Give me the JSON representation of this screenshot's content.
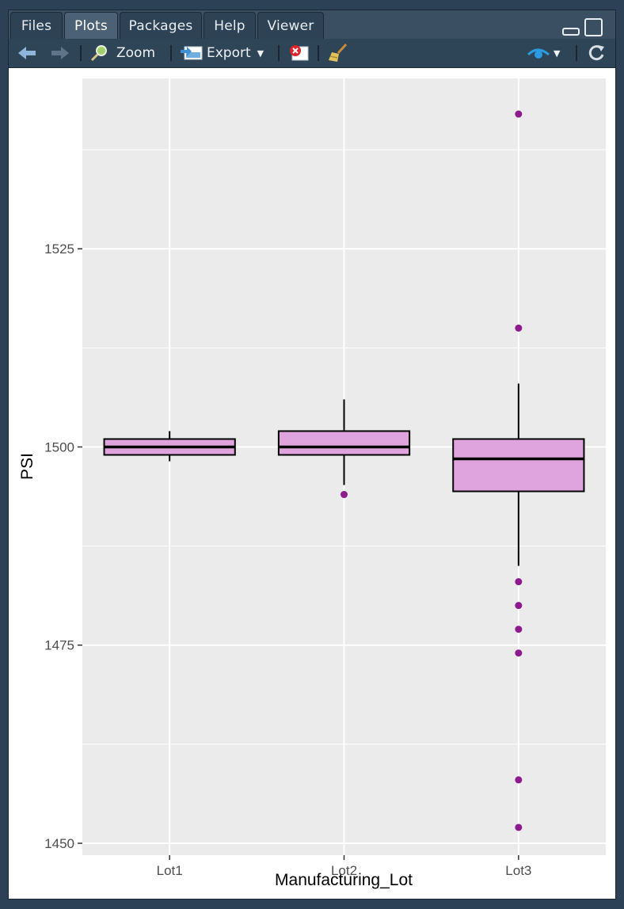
{
  "tabs": [
    {
      "label": "Files"
    },
    {
      "label": "Plots"
    },
    {
      "label": "Packages"
    },
    {
      "label": "Help"
    },
    {
      "label": "Viewer"
    }
  ],
  "toolbar": {
    "zoom_label": "Zoom",
    "export_label": "Export"
  },
  "colors": {
    "box_fill": "#dfa3de",
    "outlier": "#8e1b8e",
    "panel_bg": "#ebebeb",
    "accent_blue": "#2b9be0"
  },
  "chart_data": {
    "type": "box",
    "xlabel": "Manufacturing_Lot",
    "ylabel": "PSI",
    "categories": [
      "Lot1",
      "Lot2",
      "Lot3"
    ],
    "ylim": [
      1448.5,
      1546.5
    ],
    "yticks": [
      1450,
      1475,
      1500,
      1525
    ],
    "ytick_labels": [
      "1450",
      "1475",
      "1500",
      "1525"
    ],
    "grid": true,
    "boxes": [
      {
        "category": "Lot1",
        "whisker_low": 1498.2,
        "q1": 1499,
        "median": 1500,
        "q3": 1501,
        "whisker_high": 1502,
        "outliers": []
      },
      {
        "category": "Lot2",
        "whisker_low": 1495.2,
        "q1": 1499,
        "median": 1500,
        "q3": 1502,
        "whisker_high": 1506,
        "outliers": [
          1494
        ]
      },
      {
        "category": "Lot3",
        "whisker_low": 1485,
        "q1": 1494.4,
        "median": 1498.5,
        "q3": 1501,
        "whisker_high": 1508,
        "outliers": [
          1542,
          1515,
          1483,
          1480,
          1477,
          1474,
          1458,
          1452
        ]
      }
    ]
  }
}
